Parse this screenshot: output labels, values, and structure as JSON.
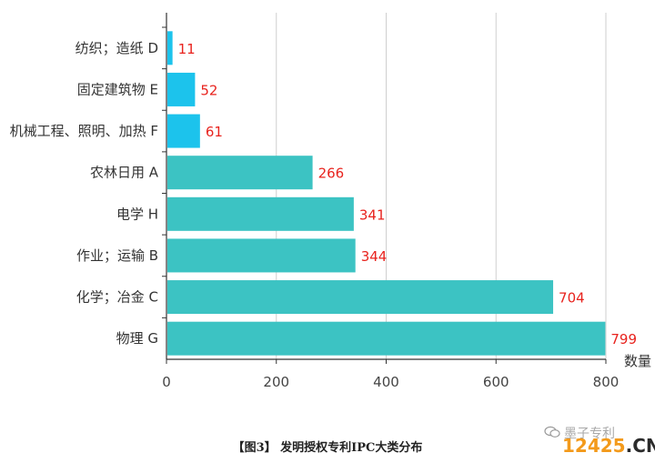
{
  "chart_data": {
    "type": "bar",
    "orientation": "horizontal",
    "categories": [
      "纺织；造纸 D",
      "固定建筑物 E",
      "机械工程、照明、加热 F",
      "农林日用 A",
      "电学 H",
      "作业；运输 B",
      "化学；冶金 C",
      "物理 G"
    ],
    "values": [
      11,
      52,
      61,
      266,
      341,
      344,
      704,
      799
    ],
    "bar_colors": [
      "#1cc3ec",
      "#1cc3ec",
      "#1cc3ec",
      "#3cc3c3",
      "#3cc3c3",
      "#3cc3c3",
      "#3cc3c3",
      "#3cc3c3"
    ],
    "value_label_color": "#e8231e",
    "xlim": [
      0,
      800
    ],
    "xticks": [
      0,
      200,
      400,
      600,
      800
    ],
    "xlabel": "数量",
    "grid": "vertical",
    "title": ""
  },
  "caption": "【图3】 发明授权专利IPC大类分布",
  "watermark": {
    "account": "墨子专利",
    "site_number": "12425",
    "site_suffix": ".CN"
  }
}
